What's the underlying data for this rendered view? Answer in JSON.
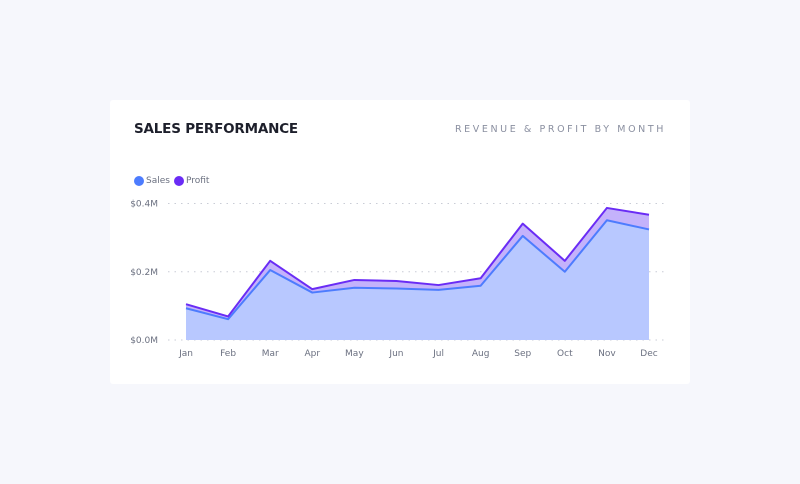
{
  "chart_data": {
    "type": "area",
    "stacked": true,
    "title": "SALES PERFORMANCE",
    "subtitle": "REVENUE & PROFIT BY MONTH",
    "categories": [
      "Jan",
      "Feb",
      "Mar",
      "Apr",
      "May",
      "Jun",
      "Jul",
      "Aug",
      "Sep",
      "Oct",
      "Nov",
      "Dec"
    ],
    "series": [
      {
        "name": "Sales",
        "color": "#4d7cfe",
        "fill": "#b8c8ff",
        "values": [
          0.093,
          0.061,
          0.205,
          0.139,
          0.153,
          0.151,
          0.147,
          0.159,
          0.305,
          0.2,
          0.351,
          0.324
        ]
      },
      {
        "name": "Profit",
        "color": "#6a2cf5",
        "fill": "#c4b2fb",
        "values": [
          0.012,
          0.008,
          0.027,
          0.01,
          0.023,
          0.022,
          0.014,
          0.022,
          0.036,
          0.032,
          0.036,
          0.043
        ]
      }
    ],
    "yticks": [
      0,
      0.2,
      0.4
    ],
    "ytick_labels": [
      "$0.0M",
      "$0.2M",
      "$0.4M"
    ],
    "ylim": [
      0,
      0.4
    ],
    "xlabel": "",
    "ylabel": "",
    "grid": true,
    "legend_position": "top-left"
  }
}
